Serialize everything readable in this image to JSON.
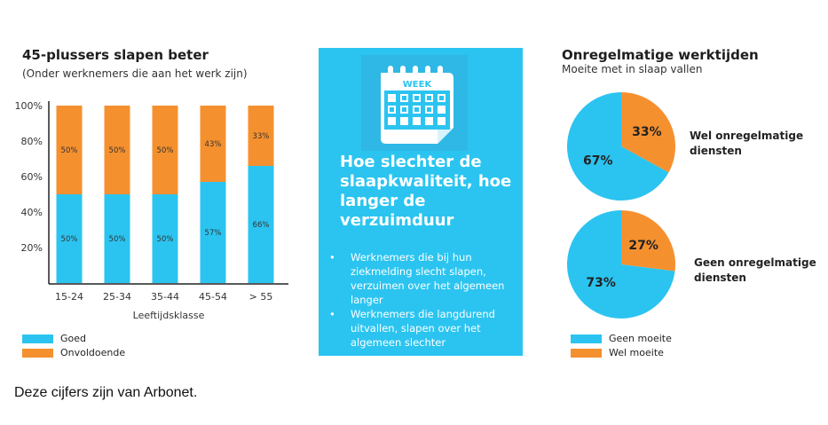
{
  "colors": {
    "blue": "#2bc4f0",
    "orange": "#f5902f"
  },
  "chart_data": [
    {
      "type": "bar",
      "stacked": true,
      "title": "45-plussers slapen beter",
      "subtitle": "(Onder werknemers die aan het werk zijn)",
      "xlabel": "Leeftijdsklasse",
      "ylabel": "",
      "ylim": [
        0,
        100
      ],
      "yticks": [
        "20%",
        "40%",
        "60%",
        "80%",
        "100%"
      ],
      "categories": [
        "15-24",
        "25-34",
        "35-44",
        "45-54",
        "> 55"
      ],
      "series": [
        {
          "name": "Goed",
          "values": [
            50,
            50,
            50,
            57,
            66
          ],
          "labels": [
            "50%",
            "50%",
            "50%",
            "57%",
            "66%"
          ]
        },
        {
          "name": "Onvoldoende",
          "values": [
            50,
            50,
            50,
            43,
            33
          ],
          "labels": [
            "50%",
            "50%",
            "50%",
            "43%",
            "33%"
          ]
        }
      ],
      "legend": "bottom-left"
    },
    {
      "type": "pie",
      "title": "Onregelmatige werktijden",
      "subtitle": "Moeite met in slaap vallen",
      "label": "Wel onregelmatige diensten",
      "slices": [
        {
          "name": "Wel moeite",
          "value": 33,
          "label": "33%"
        },
        {
          "name": "Geen moeite",
          "value": 67,
          "label": "67%"
        }
      ]
    },
    {
      "type": "pie",
      "label": "Geen onregelmatige diensten",
      "slices": [
        {
          "name": "Wel moeite",
          "value": 27,
          "label": "27%"
        },
        {
          "name": "Geen moeite",
          "value": 73,
          "label": "73%"
        }
      ],
      "legend": [
        "Geen moeite",
        "Wel moeite"
      ]
    }
  ],
  "panel": {
    "icon": "calendar-week-icon",
    "icon_text": "WEEK",
    "heading": "Hoe slechter de slaapkwaliteit, hoe langer de verzuimduur",
    "bullets": [
      "Werknemers die bij hun ziekmelding slecht slapen, verzuimen over het algemeen langer",
      "Werknemers die langdurend uitvallen, slapen over het algemeen slechter"
    ]
  },
  "footer": "Deze cijfers zijn van Arbonet."
}
